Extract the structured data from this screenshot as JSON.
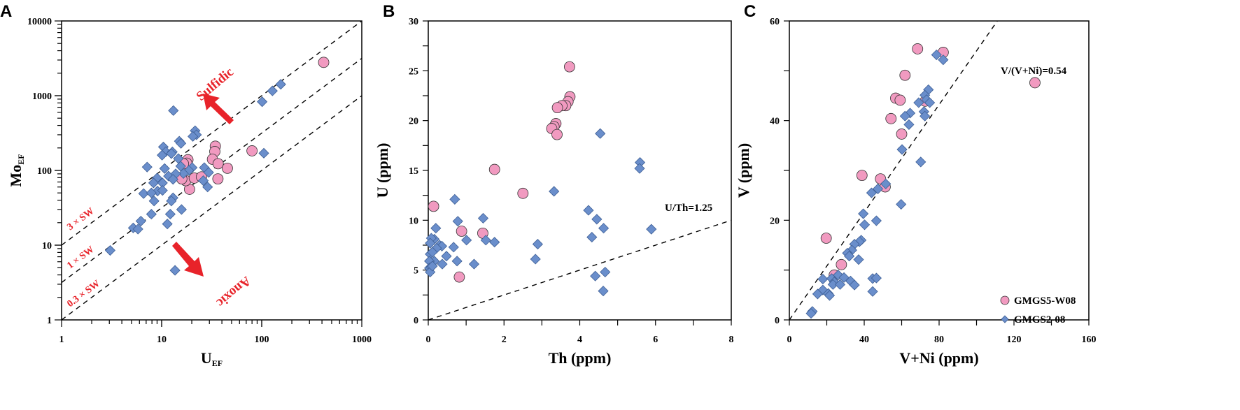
{
  "colors": {
    "pink": "#f19ac0",
    "blue": "#6a8ecb",
    "stroke": "#333333",
    "red": "#e8232a"
  },
  "legend": [
    {
      "name": "GMGS5-W08",
      "marker": "circle",
      "color": "#f19ac0"
    },
    {
      "name": "GMGS2-08",
      "marker": "diamond",
      "color": "#6a8ecb"
    }
  ],
  "chart_data": [
    {
      "type": "scatter",
      "panel_label": "A",
      "xlabel": "U",
      "xlabel_sub": "EF",
      "ylabel": "Mo",
      "ylabel_sub": "EF",
      "xscale": "log",
      "yscale": "log",
      "xlim": [
        1,
        1000
      ],
      "ylim": [
        1,
        10000
      ],
      "xticks": [
        "1",
        "10",
        "100",
        "1000"
      ],
      "yticks": [
        "1",
        "10",
        "100",
        "1000",
        "10000"
      ],
      "reference_lines": [
        {
          "label": "3 × SW",
          "ratio": 10
        },
        {
          "label": "1 × SW",
          "ratio": 3.16
        },
        {
          "label": "0.3 × SW",
          "ratio": 1
        }
      ],
      "annotations": {
        "up": "Sulfidic",
        "down": "Anoxic"
      },
      "series": [
        {
          "name": "GMGS5-W08",
          "marker": "circle",
          "points": [
            [
              416,
              2790
            ],
            [
              80,
              183
            ],
            [
              34.4,
              211
            ],
            [
              34,
              179
            ],
            [
              32.2,
              141
            ],
            [
              36.7,
              123
            ],
            [
              45.4,
              107
            ],
            [
              36.5,
              77
            ],
            [
              18.3,
              139
            ],
            [
              17.8,
              125
            ],
            [
              16.5,
              123
            ],
            [
              19,
              56
            ],
            [
              17.4,
              73
            ],
            [
              15.9,
              77
            ],
            [
              21.2,
              79
            ],
            [
              25,
              82
            ]
          ]
        },
        {
          "name": "GMGS2-08",
          "marker": "diamond",
          "points": [
            [
              3.06,
              8.5
            ],
            [
              13.6,
              4.6
            ],
            [
              13.1,
              632
            ],
            [
              101,
              830
            ],
            [
              128,
              1160
            ],
            [
              155,
              1420
            ],
            [
              105,
              170
            ],
            [
              21.6,
              340
            ],
            [
              22.3,
              300
            ],
            [
              20.5,
              285
            ],
            [
              15,
              246
            ],
            [
              15.6,
              230
            ],
            [
              10.4,
              206
            ],
            [
              11,
              178
            ],
            [
              10.1,
              160
            ],
            [
              12.8,
              177
            ],
            [
              12.5,
              168
            ],
            [
              7.16,
              111
            ],
            [
              10.7,
              106
            ],
            [
              14.7,
              144
            ],
            [
              15.5,
              114
            ],
            [
              20.2,
              109
            ],
            [
              18.7,
              100
            ],
            [
              16.5,
              91
            ],
            [
              13.8,
              90
            ],
            [
              11.7,
              84
            ],
            [
              13,
              76
            ],
            [
              26.7,
              109
            ],
            [
              29.5,
              94
            ],
            [
              26.1,
              73
            ],
            [
              28.8,
              60
            ],
            [
              9,
              79
            ],
            [
              8.3,
              68
            ],
            [
              10.2,
              68
            ],
            [
              9.1,
              53
            ],
            [
              10.2,
              54
            ],
            [
              6.6,
              49
            ],
            [
              7.9,
              50
            ],
            [
              8.4,
              39
            ],
            [
              13,
              43
            ],
            [
              12.5,
              39
            ],
            [
              7.9,
              26
            ],
            [
              12.2,
              26
            ],
            [
              15.8,
              30
            ],
            [
              6.2,
              21
            ],
            [
              5.2,
              17
            ],
            [
              5.8,
              16.4
            ],
            [
              11.4,
              19.2
            ]
          ]
        }
      ]
    },
    {
      "type": "scatter",
      "panel_label": "B",
      "xlabel": "Th (ppm)",
      "ylabel": "U (ppm)",
      "xscale": "linear",
      "yscale": "linear",
      "xlim": [
        0,
        8
      ],
      "ylim": [
        0,
        30
      ],
      "xticks": [
        "0",
        "2",
        "4",
        "6",
        "8"
      ],
      "yticks": [
        "0",
        "5",
        "10",
        "15",
        "20",
        "25",
        "30"
      ],
      "reference_lines": [
        {
          "label": "U/Th=1.25",
          "slope": 1.25
        }
      ],
      "series": [
        {
          "name": "GMGS5-W08",
          "marker": "circle",
          "points": [
            [
              3.73,
              25.4
            ],
            [
              3.74,
              22.4
            ],
            [
              3.69,
              21.9
            ],
            [
              3.63,
              21.5
            ],
            [
              3.53,
              21.5
            ],
            [
              3.41,
              21.3
            ],
            [
              3.37,
              19.7
            ],
            [
              3.32,
              19.4
            ],
            [
              3.26,
              19.2
            ],
            [
              3.4,
              18.6
            ],
            [
              1.75,
              15.1
            ],
            [
              2.5,
              12.7
            ],
            [
              0.14,
              11.4
            ],
            [
              0.88,
              8.9
            ],
            [
              1.44,
              8.7
            ],
            [
              0.82,
              4.3
            ]
          ]
        },
        {
          "name": "GMGS2-08",
          "marker": "diamond",
          "points": [
            [
              4.54,
              18.7
            ],
            [
              5.59,
              15.8
            ],
            [
              5.58,
              15.2
            ],
            [
              3.32,
              12.9
            ],
            [
              0.7,
              12.1
            ],
            [
              4.23,
              11
            ],
            [
              4.45,
              10.1
            ],
            [
              1.45,
              10.2
            ],
            [
              0.78,
              9.9
            ],
            [
              4.63,
              9.2
            ],
            [
              5.89,
              9.1
            ],
            [
              0.2,
              9.2
            ],
            [
              4.32,
              8.3
            ],
            [
              1.01,
              8
            ],
            [
              1.52,
              8
            ],
            [
              1.75,
              7.8
            ],
            [
              2.89,
              7.6
            ],
            [
              0.67,
              7.3
            ],
            [
              2.83,
              6.1
            ],
            [
              4.41,
              4.4
            ],
            [
              4.67,
              4.8
            ],
            [
              4.62,
              2.9
            ],
            [
              1.21,
              5.6
            ],
            [
              0.76,
              5.9
            ],
            [
              0.48,
              6.4
            ],
            [
              0.37,
              5.6
            ],
            [
              0.3,
              7.5
            ],
            [
              0.36,
              7.4
            ],
            [
              0.22,
              7.2
            ],
            [
              0.16,
              8.1
            ],
            [
              0.08,
              8.2
            ],
            [
              0.05,
              7.7
            ],
            [
              0.05,
              6.6
            ],
            [
              0.11,
              6.8
            ],
            [
              0.16,
              5.9
            ],
            [
              0.03,
              5.9
            ],
            [
              0.03,
              5.2
            ],
            [
              0.08,
              5.3
            ],
            [
              0.05,
              4.8
            ],
            [
              0.11,
              5.4
            ]
          ]
        }
      ]
    },
    {
      "type": "scatter",
      "panel_label": "C",
      "xlabel": "V+Ni (ppm)",
      "ylabel": "V (ppm)",
      "xscale": "linear",
      "yscale": "linear",
      "xlim": [
        0,
        160
      ],
      "ylim": [
        0,
        60
      ],
      "xticks": [
        "0",
        "40",
        "80",
        "120",
        "160"
      ],
      "yticks": [
        "0",
        "20",
        "40",
        "60"
      ],
      "reference_lines": [
        {
          "label": "V/(V+Ni)=0.54",
          "slope": 0.54
        }
      ],
      "legend_position": "bottom-right",
      "series": [
        {
          "name": "GMGS5-W08",
          "marker": "circle",
          "points": [
            [
              68.5,
              54.4
            ],
            [
              82.2,
              53.7
            ],
            [
              61.8,
              49.1
            ],
            [
              131.2,
              47.6
            ],
            [
              56.8,
              44.5
            ],
            [
              59.2,
              44.1
            ],
            [
              72.6,
              43.9
            ],
            [
              54.3,
              40.4
            ],
            [
              60,
              37.3
            ],
            [
              38.8,
              29
            ],
            [
              48.7,
              28.3
            ],
            [
              51.2,
              26.7
            ],
            [
              19.7,
              16.4
            ],
            [
              27.8,
              11.1
            ],
            [
              24,
              9
            ]
          ]
        },
        {
          "name": "GMGS2-08",
          "marker": "diamond",
          "points": [
            [
              78.6,
              53.2
            ],
            [
              82.2,
              52.2
            ],
            [
              74.3,
              46.2
            ],
            [
              72.4,
              45.1
            ],
            [
              73.3,
              44.2
            ],
            [
              75,
              43.6
            ],
            [
              69.1,
              43.6
            ],
            [
              71.9,
              41.8
            ],
            [
              72.4,
              40.9
            ],
            [
              64.5,
              41.5
            ],
            [
              61.8,
              40.9
            ],
            [
              63.9,
              39.2
            ],
            [
              60.2,
              34.2
            ],
            [
              70.2,
              31.7
            ],
            [
              51.5,
              27.3
            ],
            [
              47.3,
              26.3
            ],
            [
              43.9,
              25.5
            ],
            [
              59.7,
              23.2
            ],
            [
              39.5,
              21.3
            ],
            [
              46.5,
              19.9
            ],
            [
              40.2,
              19.1
            ],
            [
              38.4,
              16
            ],
            [
              37.4,
              15.7
            ],
            [
              34.8,
              15.2
            ],
            [
              33.4,
              14
            ],
            [
              31,
              13.4
            ],
            [
              32,
              12.8
            ],
            [
              37,
              12.1
            ],
            [
              17.9,
              8.2
            ],
            [
              26.1,
              9
            ],
            [
              29.2,
              8.5
            ],
            [
              22.6,
              8.3
            ],
            [
              24,
              7.6
            ],
            [
              23.3,
              7.1
            ],
            [
              27.1,
              7.1
            ],
            [
              32.7,
              7.8
            ],
            [
              34.8,
              7
            ],
            [
              44.5,
              8.3
            ],
            [
              46.5,
              8.4
            ],
            [
              44.5,
              5.7
            ],
            [
              17.9,
              6
            ],
            [
              15.1,
              5.2
            ],
            [
              20.8,
              5.3
            ],
            [
              21.5,
              4.9
            ],
            [
              12.3,
              1.7
            ],
            [
              11.6,
              1.3
            ]
          ]
        }
      ]
    }
  ]
}
